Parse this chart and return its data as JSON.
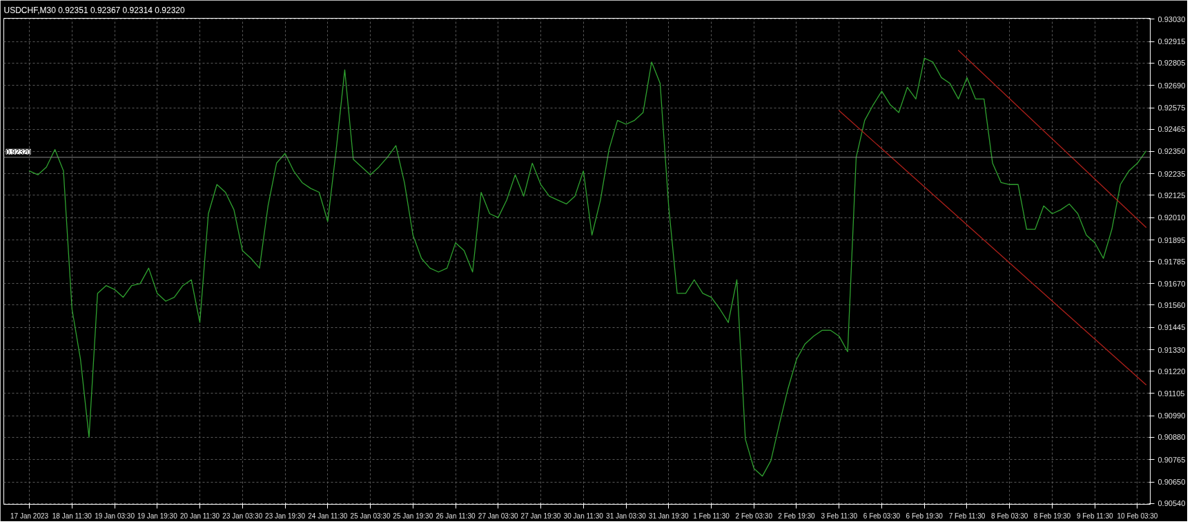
{
  "chart_data": {
    "type": "line",
    "title": "USDCHF,M30  0.92351 0.92367 0.92314 0.92320",
    "categories": [
      "17 Jan 2023",
      null,
      null,
      null,
      null,
      "18 Jan 11:30",
      null,
      null,
      null,
      null,
      "19 Jan 03:30",
      null,
      null,
      null,
      null,
      "19 Jan 19:30",
      null,
      null,
      null,
      null,
      "20 Jan 11:30",
      null,
      null,
      null,
      null,
      "23 Jan 03:30",
      null,
      null,
      null,
      null,
      "23 Jan 19:30",
      null,
      null,
      null,
      null,
      "24 Jan 11:30",
      null,
      null,
      null,
      null,
      "25 Jan 03:30",
      null,
      null,
      null,
      null,
      "25 Jan 19:30",
      null,
      null,
      null,
      null,
      "26 Jan 11:30",
      null,
      null,
      null,
      null,
      "27 Jan 03:30",
      null,
      null,
      null,
      null,
      "27 Jan 19:30",
      null,
      null,
      null,
      null,
      "30 Jan 11:30",
      null,
      null,
      null,
      null,
      "31 Jan 03:30",
      null,
      null,
      null,
      null,
      "31 Jan 19:30",
      null,
      null,
      null,
      null,
      "1 Feb 11:30",
      null,
      null,
      null,
      null,
      "2 Feb 03:30",
      null,
      null,
      null,
      null,
      "2 Feb 19:30",
      null,
      null,
      null,
      null,
      "3 Feb 11:30",
      null,
      null,
      null,
      null,
      "6 Feb 03:30",
      null,
      null,
      null,
      null,
      "6 Feb 19:30",
      null,
      null,
      null,
      null,
      "7 Feb 11:30",
      null,
      null,
      null,
      null,
      "8 Feb 03:30",
      null,
      null,
      null,
      null,
      "8 Feb 19:30",
      null,
      null,
      null,
      null,
      "9 Feb 11:30",
      null,
      null,
      null,
      null,
      "10 Feb 03:30",
      null
    ],
    "series": [
      {
        "color": "#2fa12f",
        "values": [
          0.9225,
          0.9223,
          0.9227,
          0.9236,
          0.9225,
          0.9154,
          0.9128,
          0.9088,
          0.9162,
          0.9166,
          0.9164,
          0.916,
          0.9166,
          0.9167,
          0.9175,
          0.9162,
          0.9158,
          0.916,
          0.9166,
          0.9169,
          0.9147,
          0.9203,
          0.9218,
          0.9214,
          0.9205,
          0.9184,
          0.918,
          0.9175,
          0.9207,
          0.9229,
          0.9234,
          0.9225,
          0.9219,
          0.9216,
          0.9214,
          0.9199,
          0.9236,
          0.9277,
          0.9231,
          0.9227,
          0.9223,
          0.9227,
          0.9232,
          0.9238,
          0.9219,
          0.9192,
          0.918,
          0.9175,
          0.9173,
          0.9175,
          0.9188,
          0.9184,
          0.9173,
          0.9214,
          0.9203,
          0.9201,
          0.921,
          0.9223,
          0.9212,
          0.9229,
          0.9218,
          0.9212,
          0.921,
          0.9208,
          0.9212,
          0.9225,
          0.9192,
          0.921,
          0.9236,
          0.9251,
          0.9249,
          0.9251,
          0.9255,
          0.9281,
          0.927,
          0.9207,
          0.9162,
          0.9162,
          0.9169,
          0.9162,
          0.916,
          0.9154,
          0.9147,
          0.9169,
          0.9087,
          0.9072,
          0.9068,
          0.9076,
          0.9095,
          0.9113,
          0.9128,
          0.9136,
          0.914,
          0.9143,
          0.9143,
          0.914,
          0.9132,
          0.9232,
          0.9251,
          0.9259,
          0.9266,
          0.9259,
          0.9255,
          0.9268,
          0.9262,
          0.9283,
          0.9281,
          0.9273,
          0.927,
          0.9262,
          0.9273,
          0.9262,
          0.9262,
          0.9229,
          0.9219,
          0.9218,
          0.9218,
          0.9195,
          0.9195,
          0.9207,
          0.9203,
          0.9205,
          0.9208,
          0.9203,
          0.9192,
          0.9188,
          0.918,
          0.9195,
          0.9218,
          0.9225,
          0.9229,
          0.92352
        ]
      },
      {
        "color": "#b0201a",
        "values": [
          null,
          null,
          null,
          null,
          null,
          null,
          null,
          null,
          null,
          null,
          null,
          null,
          null,
          null,
          null,
          null,
          null,
          null,
          null,
          null,
          null,
          null,
          null,
          null,
          null,
          null,
          null,
          null,
          null,
          null,
          null,
          null,
          null,
          null,
          null,
          null,
          null,
          null,
          null,
          null,
          null,
          null,
          null,
          null,
          null,
          null,
          null,
          null,
          null,
          null,
          null,
          null,
          null,
          null,
          null,
          null,
          null,
          null,
          null,
          null,
          null,
          null,
          null,
          null,
          null,
          null,
          null,
          null,
          null,
          null,
          null,
          null,
          null,
          null,
          null,
          null,
          null,
          null,
          null,
          null,
          null,
          null,
          null,
          null,
          null,
          null,
          null,
          null,
          null,
          null,
          null,
          null,
          null,
          null,
          null,
          null,
          null,
          null,
          null,
          null,
          null,
          null,
          null,
          null,
          null,
          null,
          null,
          null,
          null,
          0.9287,
          null,
          null,
          null,
          null,
          null,
          null,
          null,
          null,
          null,
          null,
          null,
          null,
          null,
          null,
          null,
          null,
          null,
          null,
          null,
          null,
          null,
          0.9196
        ]
      },
      {
        "color": "#b0201a",
        "values": [
          null,
          null,
          null,
          null,
          null,
          null,
          null,
          null,
          null,
          null,
          null,
          null,
          null,
          null,
          null,
          null,
          null,
          null,
          null,
          null,
          null,
          null,
          null,
          null,
          null,
          null,
          null,
          null,
          null,
          null,
          null,
          null,
          null,
          null,
          null,
          null,
          null,
          null,
          null,
          null,
          null,
          null,
          null,
          null,
          null,
          null,
          null,
          null,
          null,
          null,
          null,
          null,
          null,
          null,
          null,
          null,
          null,
          null,
          null,
          null,
          null,
          null,
          null,
          null,
          null,
          null,
          null,
          null,
          null,
          null,
          null,
          null,
          null,
          null,
          null,
          null,
          null,
          null,
          null,
          null,
          null,
          null,
          null,
          null,
          null,
          null,
          null,
          null,
          null,
          null,
          null,
          null,
          null,
          null,
          null,
          0.9256,
          null,
          null,
          null,
          null,
          null,
          null,
          null,
          null,
          null,
          null,
          null,
          null,
          null,
          null,
          null,
          null,
          null,
          null,
          null,
          null,
          null,
          null,
          null,
          null,
          null,
          null,
          null,
          null,
          null,
          null,
          null,
          null,
          null,
          null,
          null,
          0.9115
        ]
      }
    ],
    "ylim": [
      0.90535,
      0.93035
    ],
    "yticks": [
      {
        "value": 0.9303,
        "label": "0.93030"
      },
      0.92915,
      0.92805,
      {
        "value": 0.9269,
        "label": "0.92690"
      },
      0.92575,
      0.92465,
      {
        "value": 0.9235,
        "label": "0.92350"
      },
      0.92235,
      0.92125,
      {
        "value": 0.9201,
        "label": "0.92010"
      },
      0.91895,
      0.91785,
      {
        "value": 0.9167,
        "label": "0.91670"
      },
      {
        "value": 0.9156,
        "label": "0.91560"
      },
      0.91445,
      {
        "value": 0.9133,
        "label": "0.91330"
      },
      {
        "value": 0.9122,
        "label": "0.91220"
      },
      0.91105,
      {
        "value": 0.9099,
        "label": "0.90990"
      },
      {
        "value": 0.9088,
        "label": "0.90880"
      },
      0.90765,
      {
        "value": 0.9065,
        "label": "0.90650"
      },
      {
        "value": 0.9054,
        "label": "0.90540"
      }
    ],
    "ref_lines": [
      {
        "axis": "y",
        "value": 0.9232,
        "label": "0.92320",
        "color": "#8a8a8a"
      }
    ],
    "grid": true
  }
}
